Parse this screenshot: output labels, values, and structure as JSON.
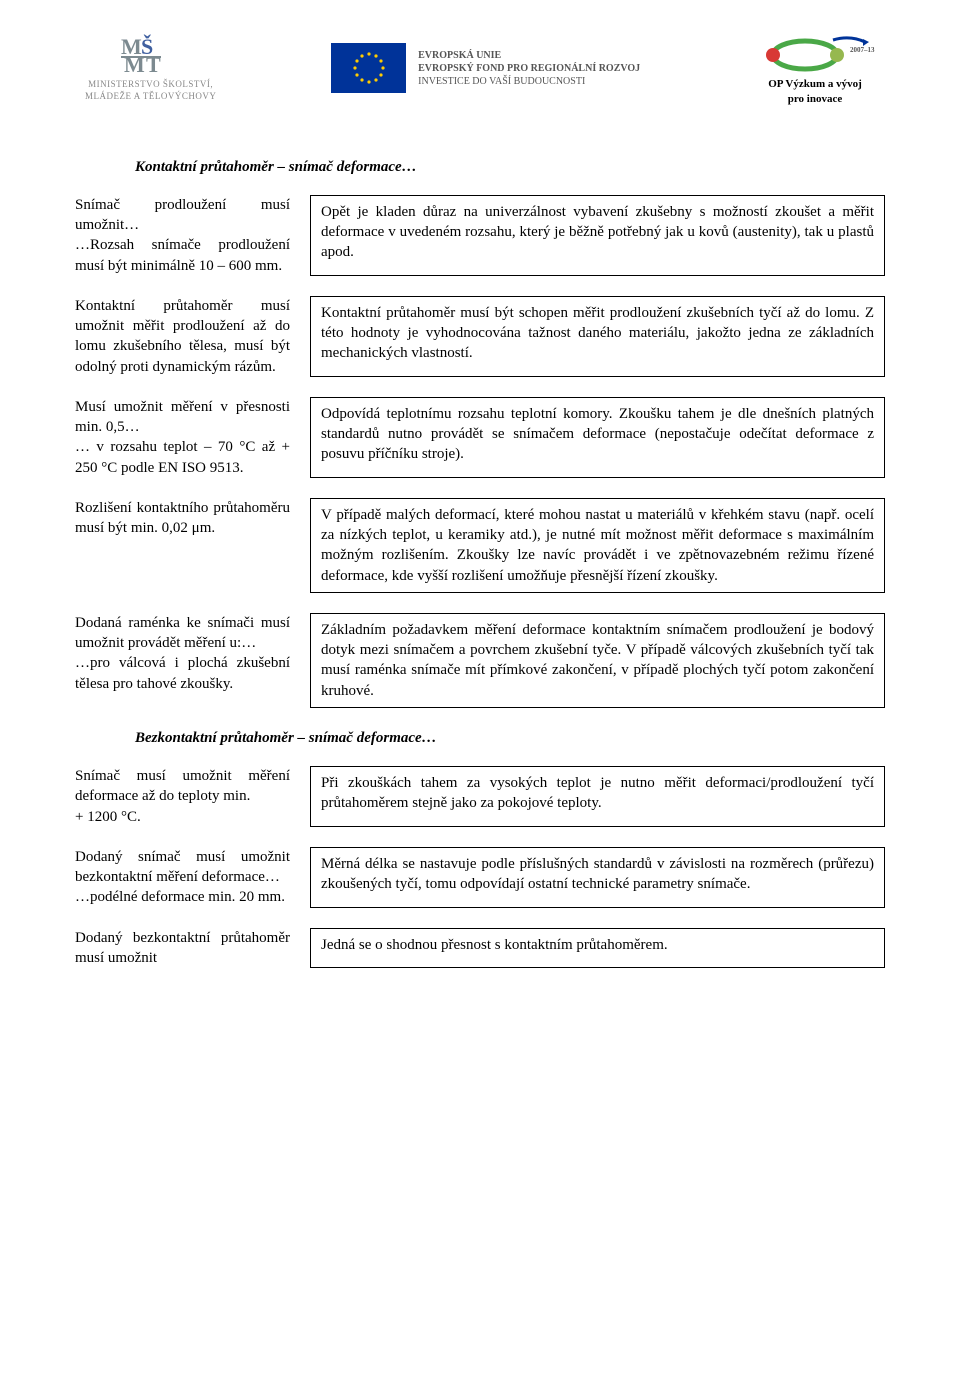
{
  "header": {
    "msmt": {
      "line1": "MINISTERSTVO ŠKOLSTVÍ,",
      "line2": "MLÁDEŽE A TĚLOVÝCHOVY"
    },
    "eu": {
      "line1": "EVROPSKÁ UNIE",
      "line2": "EVROPSKÝ FOND PRO REGIONÁLNÍ ROZVOJ",
      "line3": "INVESTICE DO VAŠÍ BUDOUCNOSTI"
    },
    "op": {
      "year": "2007–13",
      "line1": "OP Výzkum a vývoj",
      "line2": "pro inovace"
    }
  },
  "section1_title": "Kontaktní průtahoměr – snímač deformace…",
  "section2_title": "Bezkontaktní průtahoměr – snímač deformace…",
  "rows": [
    {
      "left": "Snímač prodloužení musí umožnit…\n…Rozsah snímače prodloužení musí být minimálně 10 – 600 mm.",
      "right": "Opět je kladen důraz na univerzálnost vybavení zkušebny s možností zkoušet a měřit deformace v uvedeném rozsahu, který je běžně potřebný jak u kovů (austenity), tak u plastů apod."
    },
    {
      "left": "Kontaktní průtahoměr musí umožnit měřit prodloužení až do lomu zkušebního tělesa, musí být odolný proti dynamickým rázům.",
      "right": "Kontaktní průtahoměr musí být schopen měřit prodloužení zkušebních tyčí až do lomu. Z této hodnoty je vyhodnocována tažnost daného materiálu, jakožto jedna ze základních mechanických vlastností."
    },
    {
      "left": "Musí umožnit měření v přesnosti min. 0,5…\n… v rozsahu teplot – 70 °C až + 250 °C podle EN ISO 9513.",
      "right": "Odpovídá teplotnímu rozsahu teplotní komory. Zkoušku tahem je dle dnešních platných standardů nutno provádět se snímačem deformace (nepostačuje odečítat deformace z posuvu příčníku stroje)."
    },
    {
      "left": "Rozlišení kontaktního průtahoměru musí být min. 0,02 μm.",
      "right": "V případě malých deformací, které mohou nastat u materiálů v křehkém stavu (např. ocelí za nízkých teplot, u keramiky atd.), je nutné mít možnost měřit deformace s maximálním možným rozlišením. Zkoušky lze navíc provádět i ve zpětnovazebném režimu řízené deformace, kde vyšší rozlišení umožňuje přesnější řízení zkoušky."
    },
    {
      "left": "Dodaná raménka ke snímači musí umožnit provádět měření u:…\n…pro válcová i plochá zkušební tělesa pro tahové zkoušky.",
      "right": "Základním požadavkem měření deformace kontaktním snímačem prodloužení je bodový dotyk mezi snímačem a povrchem zkušební tyče. V případě válcových zkušebních tyčí tak musí raménka snímače mít přímkové zakončení, v případě plochých tyčí potom zakončení kruhové."
    }
  ],
  "rows2": [
    {
      "left": "Snímač musí umožnit měření deformace až do teploty min.\n+ 1200 °C.",
      "right": "Při zkouškách tahem za vysokých teplot je nutno měřit deformaci/prodloužení tyčí průtahoměrem stejně jako za pokojové teploty."
    },
    {
      "left": "Dodaný snímač musí umožnit bezkontaktní měření deformace…\n…podélné deformace min. 20 mm.",
      "right": "Měrná délka se nastavuje podle příslušných standardů v závislosti na rozměrech (průřezu) zkoušených tyčí, tomu odpovídají ostatní technické parametry snímače."
    },
    {
      "left": "Dodaný bezkontaktní průtahoměr musí umožnit",
      "right": "Jedná se o shodnou přesnost s kontaktním průtahoměrem."
    }
  ],
  "colors": {
    "text": "#000000",
    "background": "#ffffff",
    "border": "#000000",
    "eu_blue": "#003399",
    "eu_star": "#ffcc00",
    "op_green": "#4aa847",
    "op_red": "#d83935",
    "msmt_gray": "#7c8a90"
  }
}
